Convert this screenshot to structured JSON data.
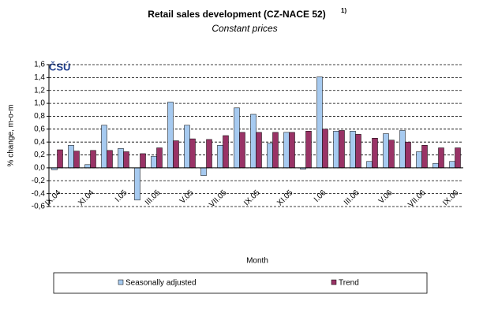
{
  "chart_data": {
    "type": "bar",
    "title": "Retail sales development (CZ-NACE 52)",
    "title_note": "1)",
    "subtitle": "Constant prices",
    "logo": "ČSÚ",
    "x_label": "Month",
    "y_label": "% change, m-o-m",
    "categories": [
      "IX.04",
      null,
      "XI.04",
      null,
      "I.05",
      null,
      "III.05",
      null,
      "V.05",
      null,
      "VII.05",
      null,
      "IX.05",
      null,
      "XI.05",
      null,
      "I.06",
      null,
      "III.06",
      null,
      "V.06",
      null,
      "VII.06",
      null,
      "IX.06"
    ],
    "series": [
      {
        "name": "Seasonally adjusted",
        "color": "#a6caf0",
        "values": [
          -0.03,
          0.35,
          0.05,
          0.66,
          0.3,
          -0.5,
          0.18,
          1.02,
          0.66,
          -0.12,
          0.35,
          0.93,
          0.83,
          0.38,
          0.55,
          -0.02,
          1.41,
          0.57,
          0.57,
          0.1,
          0.53,
          0.58,
          0.25,
          0.07,
          0.1
        ]
      },
      {
        "name": "Trend",
        "color": "#993366",
        "values": [
          0.28,
          0.26,
          0.27,
          0.27,
          0.25,
          0.22,
          0.31,
          0.42,
          0.45,
          0.44,
          0.5,
          0.55,
          0.55,
          0.55,
          0.55,
          0.57,
          0.6,
          0.58,
          0.52,
          0.46,
          0.43,
          0.4,
          0.35,
          0.31,
          0.31
        ]
      }
    ],
    "ylim": [
      -0.6,
      1.6
    ],
    "yticks": [
      {
        "value": -0.6,
        "label": "-0,6"
      },
      {
        "value": -0.4,
        "label": "-0,4"
      },
      {
        "value": -0.2,
        "label": "-0,2"
      },
      {
        "value": 0,
        "label": "0,0"
      },
      {
        "value": 0.2,
        "label": "0,2"
      },
      {
        "value": 0.4,
        "label": "0,4"
      },
      {
        "value": 0.6,
        "label": "0,6"
      },
      {
        "value": 0.8,
        "label": "0,8"
      },
      {
        "value": 1.0,
        "label": "1,0"
      },
      {
        "value": 1.2,
        "label": "1,2"
      },
      {
        "value": 1.4,
        "label": "1,4"
      },
      {
        "value": 1.6,
        "label": "1,6"
      }
    ],
    "grid": true
  }
}
